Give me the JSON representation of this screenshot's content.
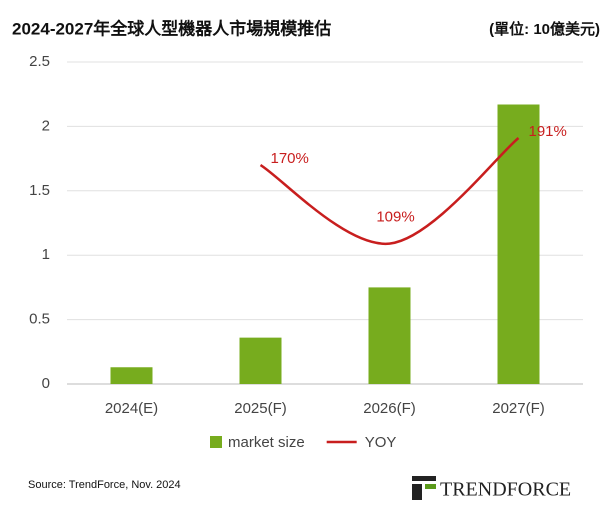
{
  "chart_data": {
    "type": "bar",
    "title": "2024-2027年全球人型機器人市場規模推估",
    "subtitle": "(單位: 10億美元)",
    "categories": [
      "2024(E)",
      "2025(F)",
      "2026(F)",
      "2027(F)"
    ],
    "series": [
      {
        "name": "market size",
        "type": "bar",
        "color": "#77ac1e",
        "values": [
          0.13,
          0.36,
          0.75,
          2.17
        ]
      },
      {
        "name": "YOY",
        "type": "line",
        "color": "#c81e1e",
        "values": [
          null,
          1.7,
          1.09,
          1.91
        ],
        "value_labels": [
          null,
          "170%",
          "109%",
          "191%"
        ]
      }
    ],
    "ylim": [
      0,
      2.5
    ],
    "yticks": [
      0,
      0.5,
      1,
      1.5,
      2,
      2.5
    ],
    "grid": true,
    "legend": "bottom",
    "source": "Source: TrendForce, Nov. 2024",
    "logo": "TRENDFORCE"
  }
}
